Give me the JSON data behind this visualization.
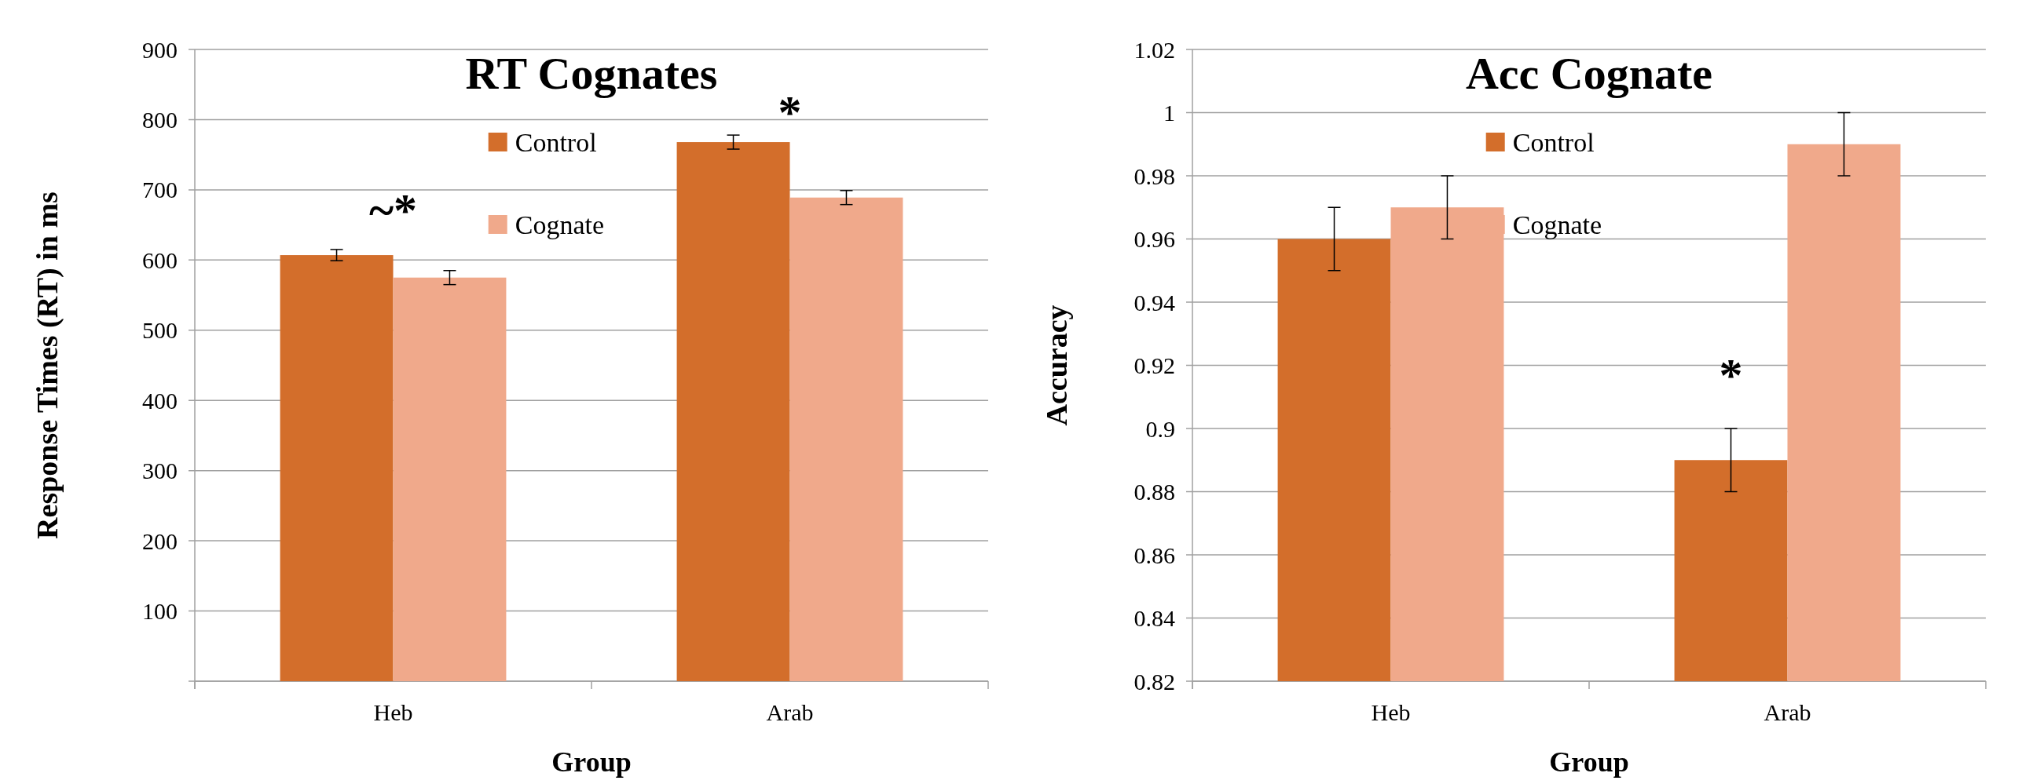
{
  "chart_data": [
    {
      "type": "bar",
      "title": "RT Cognates",
      "xlabel": "Group",
      "ylabel": "Response Times (RT) in ms",
      "categories": [
        "Heb",
        "Arab"
      ],
      "series": [
        {
          "name": "Control",
          "color": "#d36e2b",
          "values": [
            607,
            768
          ],
          "errors": [
            8,
            10
          ]
        },
        {
          "name": "Cognate",
          "color": "#f0a98b",
          "values": [
            575,
            689
          ],
          "errors": [
            10,
            10
          ]
        }
      ],
      "ylim": [
        0,
        900
      ],
      "yticks": [
        {
          "value": 0,
          "label": null
        },
        100,
        200,
        300,
        400,
        500,
        600,
        700,
        800,
        900
      ],
      "grid": "y",
      "legend": "top",
      "annotations": [
        "~*",
        "*"
      ]
    },
    {
      "type": "bar",
      "title": "Acc Cognate",
      "xlabel": "Group",
      "ylabel": "Accuracy",
      "categories": [
        "Heb",
        "Arab"
      ],
      "series": [
        {
          "name": "Control",
          "color": "#d36e2b",
          "values": [
            0.96,
            0.89
          ],
          "errors": [
            0.01,
            0.01
          ]
        },
        {
          "name": "Cognate",
          "color": "#f0a98b",
          "values": [
            0.97,
            0.99
          ],
          "errors": [
            0.01,
            0.01
          ]
        }
      ],
      "ylim": [
        0.82,
        1.02
      ],
      "yticks": [
        0.82,
        0.84,
        0.86,
        0.88,
        0.9,
        0.92,
        0.94,
        0.96,
        0.98,
        1,
        1.02
      ],
      "grid": "y",
      "legend": "top",
      "annotations": [
        {
          "text": "*",
          "x": "Arab",
          "y": 0.912
        }
      ]
    }
  ]
}
